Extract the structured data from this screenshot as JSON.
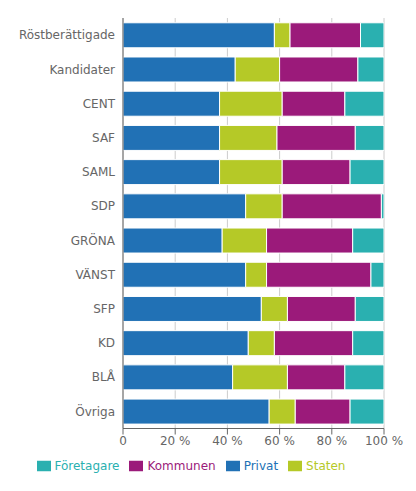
{
  "chart_data": {
    "type": "bar",
    "orientation": "horizontal",
    "stacked": true,
    "categories": [
      "Röstberättigade",
      "Kandidater",
      "CENT",
      "SAF",
      "SAML",
      "SDP",
      "GRÖNA",
      "VÄNST",
      "SFP",
      "KD",
      "BLÅ",
      "Övriga"
    ],
    "series": [
      {
        "name": "Privat",
        "color": "#2171b5",
        "values": [
          58,
          43,
          37,
          37,
          37,
          47,
          38,
          47,
          53,
          48,
          42,
          56
        ]
      },
      {
        "name": "Staten",
        "color": "#b5c927",
        "values": [
          6,
          17,
          24,
          22,
          24,
          14,
          17,
          8,
          10,
          10,
          21,
          10
        ]
      },
      {
        "name": "Kommunen",
        "color": "#9b1a7a",
        "values": [
          27,
          30,
          24,
          30,
          26,
          38,
          33,
          40,
          26,
          30,
          22,
          21
        ]
      },
      {
        "name": "Företagare",
        "color": "#2ab0b0",
        "values": [
          9,
          10,
          15,
          11,
          13,
          1,
          12,
          5,
          11,
          12,
          15,
          13
        ]
      }
    ],
    "xlim": [
      0,
      100
    ],
    "xticks": [
      0,
      {
        "value": 20,
        "label": "20 %"
      },
      {
        "value": 40,
        "label": "40 %"
      },
      {
        "value": 60,
        "label": "60 %"
      },
      {
        "value": 80,
        "label": "80 %"
      },
      {
        "value": 100,
        "label": "100 %"
      }
    ],
    "grid": "x",
    "legend": "bottom"
  }
}
